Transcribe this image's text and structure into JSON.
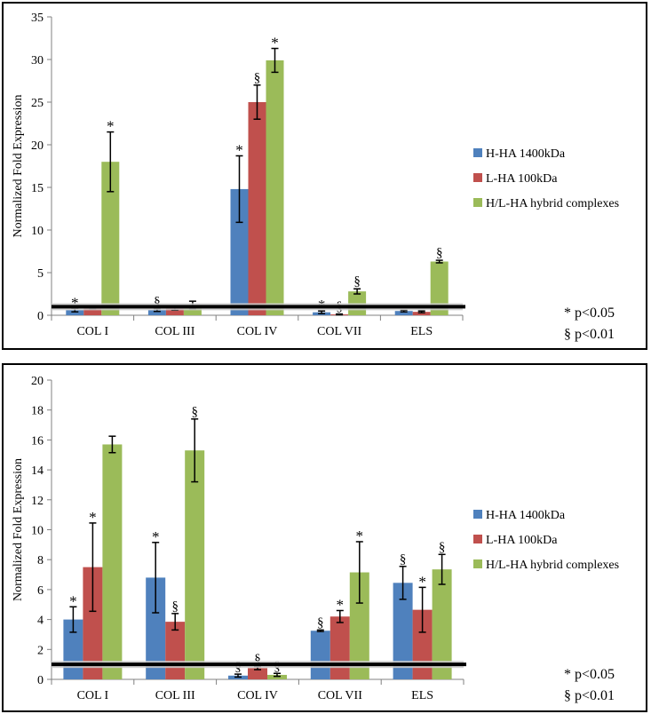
{
  "legend_symbols": {
    "star": "*",
    "section": "§"
  },
  "series_colors": {
    "H-HA 1400kDa": "#4F81BD",
    "L-HA 100kDa": "#C0504D",
    "H/L-HA hybrid complexes": "#9BBB59"
  },
  "chart_data": [
    {
      "type": "bar",
      "ylabel": "Normalized Fold Expression",
      "ylim": [
        0,
        35
      ],
      "yticks": [
        0,
        5,
        10,
        15,
        20,
        25,
        30,
        35
      ],
      "categories": [
        "COL I",
        "COL III",
        "COL IV",
        "COL VII",
        "ELS"
      ],
      "baseline": 1,
      "series": [
        {
          "name": "H-HA 1400kDa",
          "values": [
            0.6,
            0.6,
            14.8,
            0.35,
            0.5
          ],
          "errors": [
            0.2,
            0.15,
            3.9,
            0.15,
            0.1
          ],
          "marks": [
            "*",
            "§",
            "*",
            "*",
            ""
          ]
        },
        {
          "name": "L-HA 100kDa",
          "values": [
            0.85,
            0.8,
            25.0,
            0.1,
            0.4
          ],
          "errors": [
            0.1,
            0.2,
            2.0,
            0.05,
            0.1
          ],
          "marks": [
            "",
            "",
            "§",
            "§",
            ""
          ]
        },
        {
          "name": "H/L-HA hybrid complexes",
          "values": [
            18.0,
            1.2,
            29.9,
            2.8,
            6.3
          ],
          "errors": [
            3.5,
            0.45,
            1.4,
            0.3,
            0.15
          ],
          "marks": [
            "*",
            "",
            "*",
            "§",
            "§"
          ]
        }
      ],
      "significance": [
        "* p<0.05",
        "§ p<0.01"
      ]
    },
    {
      "type": "bar",
      "ylabel": "Normalized Fold Expression",
      "ylim": [
        0,
        20
      ],
      "yticks": [
        0,
        2,
        4,
        6,
        8,
        10,
        12,
        14,
        16,
        18,
        20
      ],
      "categories": [
        "COL I",
        "COL III",
        "COL IV",
        "COL VII",
        "ELS"
      ],
      "baseline": 1,
      "series": [
        {
          "name": "H-HA 1400kDa",
          "values": [
            4.0,
            6.8,
            0.25,
            3.25,
            6.45
          ],
          "errors": [
            0.85,
            2.35,
            0.1,
            0.05,
            1.1
          ],
          "marks": [
            "*",
            "*",
            "§",
            "§",
            "§"
          ]
        },
        {
          "name": "L-HA 100kDa",
          "values": [
            7.5,
            3.85,
            0.75,
            4.2,
            4.65
          ],
          "errors": [
            2.95,
            0.55,
            0.1,
            0.4,
            1.5
          ],
          "marks": [
            "*",
            "§",
            "§",
            "*",
            "*"
          ]
        },
        {
          "name": "H/L-HA hybrid complexes",
          "values": [
            15.7,
            15.3,
            0.3,
            7.15,
            7.35
          ],
          "errors": [
            0.55,
            2.1,
            0.1,
            2.05,
            1.0
          ],
          "marks": [
            "",
            "§",
            "§",
            "*",
            "§"
          ]
        }
      ],
      "significance": [
        "* p<0.05",
        "§ p<0.01"
      ]
    }
  ]
}
